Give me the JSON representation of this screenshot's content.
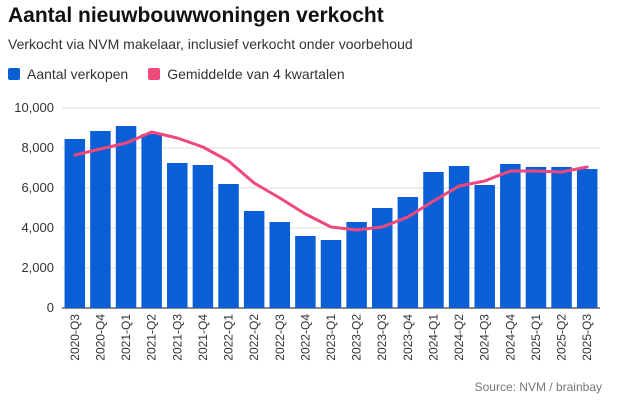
{
  "title": "Aantal nieuwbouwwoningen verkocht",
  "subtitle": "Verkocht via NVM makelaar, inclusief verkocht onder voorbehoud",
  "source": "Source: NVM / brainbay",
  "colors": {
    "bar": "#0a5fd6",
    "line": "#f0487a",
    "grid": "#dddddd"
  },
  "chart_data": {
    "type": "bar",
    "title": "Aantal nieuwbouwwoningen verkocht",
    "xlabel": "",
    "ylabel": "",
    "ylim": [
      0,
      10000
    ],
    "yticks": [
      0,
      2000,
      4000,
      6000,
      8000,
      10000
    ],
    "ytick_labels": [
      "0",
      "2,000",
      "4,000",
      "6,000",
      "8,000",
      "10,000"
    ],
    "grid": true,
    "legend_position": "top-left",
    "categories": [
      "2020-Q3",
      "2020-Q4",
      "2021-Q1",
      "2021-Q2",
      "2021-Q3",
      "2021-Q4",
      "2022-Q1",
      "2022-Q2",
      "2022-Q3",
      "2022-Q4",
      "2023-Q1",
      "2023-Q2",
      "2023-Q3",
      "2023-Q4",
      "2024-Q1",
      "2024-Q2",
      "2024-Q3",
      "2024-Q4",
      "2025-Q1",
      "2025-Q2",
      "2025-Q3"
    ],
    "series": [
      {
        "name": "Aantal verkopen",
        "kind": "bar",
        "color": "#0a5fd6",
        "values": [
          8450,
          8850,
          9100,
          8700,
          7250,
          7150,
          6200,
          4850,
          4300,
          3600,
          3400,
          4300,
          5000,
          5550,
          6800,
          7100,
          6150,
          7200,
          7050,
          7050,
          6950
        ]
      },
      {
        "name": "Gemiddelde van 4 kwartalen",
        "kind": "line",
        "color": "#f0487a",
        "values": [
          7650,
          7950,
          8250,
          8800,
          8500,
          8050,
          7350,
          6250,
          5500,
          4700,
          4050,
          3900,
          4050,
          4550,
          5350,
          6100,
          6350,
          6850,
          6850,
          6800,
          7050
        ]
      }
    ]
  }
}
